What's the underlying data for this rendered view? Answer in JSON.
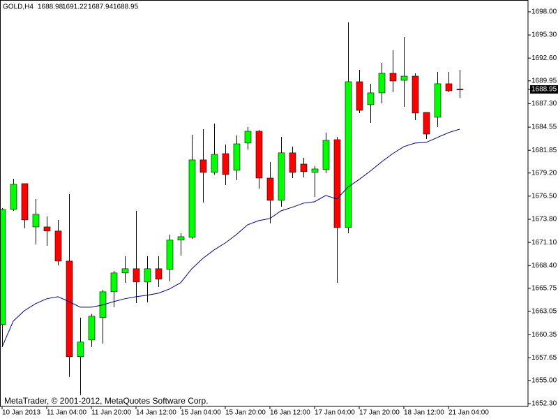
{
  "chart_data": {
    "type": "candlestick",
    "title": "GOLD,H4",
    "watermark": "MetaTrader, © 2001-2012, MetaQuotes Software Corp.",
    "categories": [
      "10 Jan 2013",
      null,
      null,
      null,
      "11 Jan 04:00",
      null,
      null,
      null,
      "11 Jan 20:00",
      null,
      null,
      null,
      "14 Jan 12:00",
      null,
      null,
      null,
      "15 Jan 04:00",
      null,
      null,
      null,
      "15 Jan 20:00",
      null,
      null,
      null,
      "16 Jan 12:00",
      null,
      null,
      null,
      "17 Jan 04:00",
      null,
      null,
      null,
      "17 Jan 20:00",
      null,
      null,
      null,
      "18 Jan 12:00",
      null,
      null,
      null,
      "21 Jan 04:00",
      null
    ],
    "open": [
      1661.51,
      1674.95,
      1677.96,
      1672.91,
      1672.91,
      1672.43,
      1668.92,
      1657.77,
      1659.72,
      1662.33,
      1665.34,
      1667.54,
      1668.03,
      1666.48,
      1668.03,
      1667.95,
      1671.37,
      1671.69,
      1680.73,
      1679.27,
      1681.46,
      1679.51,
      1682.69,
      1684.07,
      1678.61,
      1676.01,
      1681.55,
      1680.24,
      1679.27,
      1679.59,
      1683.09,
      1672.83,
      1689.85,
      1687.17,
      1688.55,
      1690.83,
      1690.01,
      1690.5,
      1686.27,
      1685.7,
      1689.61,
      1688.98
    ],
    "high": [
      1675.1,
      1678.53,
      1677.96,
      1676.17,
      1674.14,
      1673.73,
      1676.74,
      1662.33,
      1662.74,
      1665.58,
      1667.78,
      1669.49,
      1674.79,
      1669.49,
      1669.49,
      1672.02,
      1672.18,
      1683.66,
      1684.31,
      1684.97,
      1682.52,
      1683.58,
      1684.56,
      1684.23,
      1680.49,
      1683.42,
      1682.28,
      1680.98,
      1680.0,
      1683.91,
      1683.42,
      1696.77,
      1691.24,
      1689.61,
      1692.05,
      1693.52,
      1695.06,
      1690.83,
      1686.27,
      1690.99,
      1690.99,
      1691.22
    ],
    "low": [
      1658.91,
      1674.79,
      1672.75,
      1670.88,
      1670.72,
      1668.44,
      1655.41,
      1653.29,
      1658.91,
      1659.31,
      1663.55,
      1666.4,
      1664.04,
      1664.12,
      1665.91,
      1666.56,
      1669.58,
      1671.53,
      1675.76,
      1679.02,
      1677.8,
      1678.37,
      1681.95,
      1677.39,
      1673.32,
      1675.28,
      1678.61,
      1678.7,
      1676.42,
      1679.19,
      1666.4,
      1672.18,
      1686.19,
      1685.05,
      1687.33,
      1688.63,
      1686.92,
      1685.37,
      1683.17,
      1684.56,
      1688.63,
      1687.94
    ],
    "close": [
      1674.95,
      1677.88,
      1673.73,
      1674.38,
      1672.43,
      1668.92,
      1657.77,
      1659.48,
      1662.49,
      1665.34,
      1667.54,
      1668.03,
      1666.48,
      1668.03,
      1666.81,
      1671.37,
      1671.77,
      1680.73,
      1679.27,
      1681.38,
      1679.02,
      1682.6,
      1684.07,
      1678.61,
      1676.01,
      1681.55,
      1679.27,
      1679.35,
      1679.67,
      1683.01,
      1672.83,
      1689.85,
      1686.51,
      1688.55,
      1690.83,
      1689.93,
      1690.5,
      1686.19,
      1683.74,
      1689.61,
      1688.79,
      1688.95
    ],
    "up_color": "#00ff00",
    "down_color": "#ff0000",
    "moving_average": {
      "color": "#000080",
      "values": [
        1658.91,
        1661.92,
        1663.14,
        1663.96,
        1664.53,
        1664.77,
        1664.2,
        1663.55,
        1663.55,
        1663.8,
        1664.2,
        1664.53,
        1664.77,
        1664.94,
        1665.18,
        1665.67,
        1666.4,
        1668.03,
        1669.25,
        1670.23,
        1671.04,
        1672.02,
        1673.16,
        1673.65,
        1673.89,
        1674.79,
        1675.2,
        1675.68,
        1675.85,
        1676.58,
        1676.17,
        1677.56,
        1678.45,
        1679.43,
        1680.49,
        1681.46,
        1682.28,
        1682.69,
        1682.77,
        1683.34,
        1683.91,
        1684.31
      ]
    },
    "ylim": [
      1651.97,
      1699.38
    ],
    "yticks": [
      {
        "value": 1698.0,
        "label": "1698.00"
      },
      {
        "value": 1695.3,
        "label": "1695.30"
      },
      {
        "value": 1692.6,
        "label": "1692.60"
      },
      {
        "value": 1689.95,
        "label": "1689.95"
      },
      {
        "value": 1687.3,
        "label": "1687.30"
      },
      {
        "value": 1684.55,
        "label": "1684.55"
      },
      {
        "value": 1681.85,
        "label": "1681.85"
      },
      {
        "value": 1679.2,
        "label": "1679.20"
      },
      {
        "value": 1676.5,
        "label": "1676.50"
      },
      {
        "value": 1673.8,
        "label": "1673.80"
      },
      {
        "value": 1671.1,
        "label": "1671.10"
      },
      {
        "value": 1668.4,
        "label": "1668.40"
      },
      {
        "value": 1665.75,
        "label": "1665.75"
      },
      {
        "value": 1663.05,
        "label": "1663.05"
      },
      {
        "value": 1660.35,
        "label": "1660.35"
      },
      {
        "value": 1657.65,
        "label": "1657.65"
      },
      {
        "value": 1655.0,
        "label": "1655.00"
      },
      {
        "value": 1652.3,
        "label": "1652.30"
      }
    ]
  }
}
